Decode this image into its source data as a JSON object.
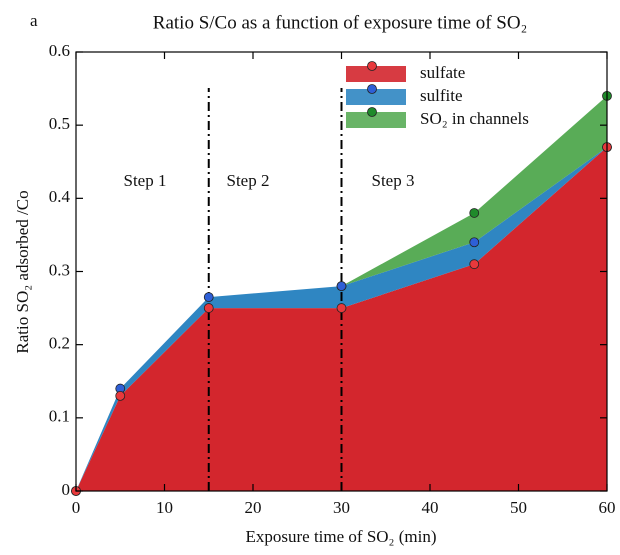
{
  "chart_data": {
    "type": "stacked_area",
    "panel_label": "a",
    "title": "Ratio S/Co as a function of exposure time of SO₂",
    "x_label": "Exposure time of SO₂ (min)",
    "y_label": "Ratio SO₂ adsorbed /Co",
    "x": [
      0,
      5,
      15,
      30,
      45,
      60
    ],
    "series": [
      {
        "name": "sulfate",
        "color": "#d3262d",
        "marker_color": "#e8393c",
        "values": [
          0,
          0.13,
          0.25,
          0.25,
          0.31,
          0.47
        ]
      },
      {
        "name": "sulfite",
        "color": "#2f86c2",
        "marker_color": "#2e5fd6",
        "values": [
          0,
          0.01,
          0.015,
          0.03,
          0.03,
          0
        ]
      },
      {
        "name": "SO₂ in channels",
        "color": "#59ac57",
        "marker_color": "#1f8a2a",
        "values": [
          null,
          null,
          null,
          0,
          0.04,
          0.07
        ]
      }
    ],
    "step_lines": [
      15,
      30
    ],
    "annotations": [
      "Step 1",
      "Step 2",
      "Step 3"
    ],
    "xlim": [
      0,
      60
    ],
    "xticks": [
      0,
      10,
      20,
      30,
      40,
      50,
      60
    ],
    "ylim": [
      0,
      0.6
    ],
    "yticks": [
      0,
      0.1,
      0.2,
      0.3,
      0.4,
      0.5,
      0.6
    ],
    "legend": "upper right"
  }
}
